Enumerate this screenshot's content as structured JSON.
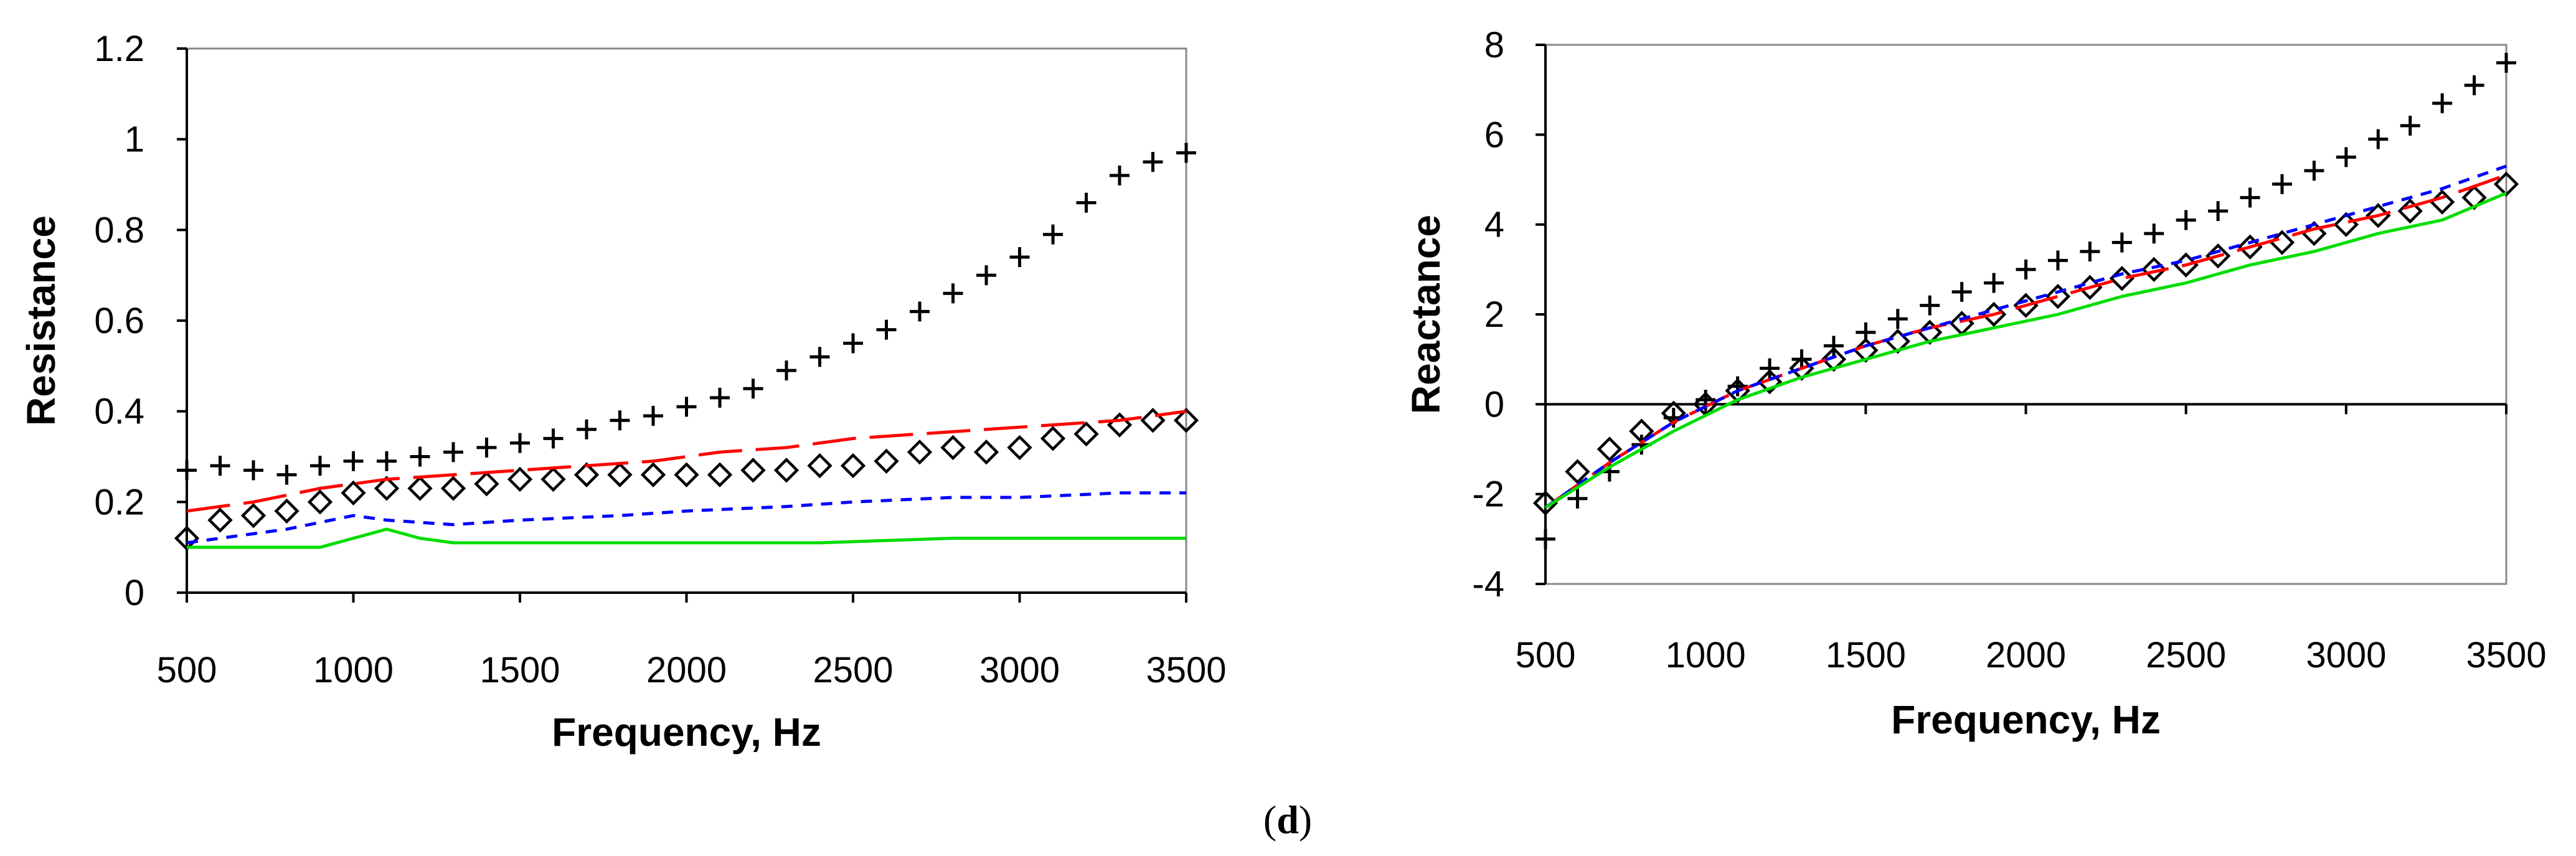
{
  "caption": {
    "open": "(",
    "letter": "d",
    "close": ")"
  },
  "chart_data": [
    {
      "type": "line",
      "xlabel": "Frequency, Hz",
      "ylabel": "Resistance",
      "xlim": [
        500,
        3500
      ],
      "ylim": [
        0,
        1.2
      ],
      "xticks": [
        500,
        1000,
        1500,
        2000,
        2500,
        3000,
        3500
      ],
      "yticks": [
        0,
        0.2,
        0.4,
        0.6,
        0.8,
        1,
        1.2
      ],
      "ytick_labels": [
        "0",
        "0.2",
        "0.4",
        "0.6",
        "0.8",
        "1",
        "1.2"
      ],
      "series": [
        {
          "name": "plus markers",
          "style": "plus",
          "color": "#000000",
          "x": [
            500,
            600,
            700,
            800,
            900,
            1000,
            1100,
            1200,
            1300,
            1400,
            1500,
            1600,
            1700,
            1800,
            1900,
            2000,
            2100,
            2200,
            2300,
            2400,
            2500,
            2600,
            2700,
            2800,
            2900,
            3000,
            3100,
            3200,
            3300,
            3400,
            3500
          ],
          "y": [
            0.27,
            0.28,
            0.27,
            0.26,
            0.28,
            0.29,
            0.29,
            0.3,
            0.31,
            0.32,
            0.33,
            0.34,
            0.36,
            0.38,
            0.39,
            0.41,
            0.43,
            0.45,
            0.49,
            0.52,
            0.55,
            0.58,
            0.62,
            0.66,
            0.7,
            0.74,
            0.79,
            0.86,
            0.92,
            0.95,
            0.97
          ]
        },
        {
          "name": "diamond markers",
          "style": "diamond",
          "color": "#000000",
          "x": [
            500,
            600,
            700,
            800,
            900,
            1000,
            1100,
            1200,
            1300,
            1400,
            1500,
            1600,
            1700,
            1800,
            1900,
            2000,
            2100,
            2200,
            2300,
            2400,
            2500,
            2600,
            2700,
            2800,
            2900,
            3000,
            3100,
            3200,
            3300,
            3400,
            3500
          ],
          "y": [
            0.12,
            0.16,
            0.17,
            0.18,
            0.2,
            0.22,
            0.23,
            0.23,
            0.23,
            0.24,
            0.25,
            0.25,
            0.26,
            0.26,
            0.26,
            0.26,
            0.26,
            0.27,
            0.27,
            0.28,
            0.28,
            0.29,
            0.31,
            0.32,
            0.31,
            0.32,
            0.34,
            0.35,
            0.37,
            0.38,
            0.38
          ]
        },
        {
          "name": "red long dash",
          "style": "longdash",
          "color": "#ff0000",
          "x": [
            500,
            700,
            900,
            1100,
            1300,
            1500,
            1700,
            1900,
            2100,
            2300,
            2500,
            2700,
            2900,
            3100,
            3300,
            3500
          ],
          "y": [
            0.18,
            0.2,
            0.23,
            0.25,
            0.26,
            0.27,
            0.28,
            0.29,
            0.31,
            0.32,
            0.34,
            0.35,
            0.36,
            0.37,
            0.38,
            0.4
          ]
        },
        {
          "name": "blue short dash",
          "style": "shortdash",
          "color": "#0000ff",
          "x": [
            500,
            800,
            1000,
            1100,
            1300,
            1500,
            1800,
            2000,
            2300,
            2500,
            2800,
            3000,
            3300,
            3500
          ],
          "y": [
            0.11,
            0.14,
            0.17,
            0.16,
            0.15,
            0.16,
            0.17,
            0.18,
            0.19,
            0.2,
            0.21,
            0.21,
            0.22,
            0.22
          ]
        },
        {
          "name": "green solid",
          "style": "solid",
          "color": "#00dd00",
          "x": [
            500,
            900,
            1000,
            1100,
            1200,
            1300,
            1600,
            2000,
            2400,
            2800,
            3200,
            3500
          ],
          "y": [
            0.1,
            0.1,
            0.12,
            0.14,
            0.12,
            0.11,
            0.11,
            0.11,
            0.11,
            0.12,
            0.12,
            0.12
          ]
        }
      ]
    },
    {
      "type": "line",
      "xlabel": "Frequency, Hz",
      "ylabel": "Reactance",
      "xlim": [
        500,
        3500
      ],
      "ylim": [
        -4,
        8
      ],
      "xticks": [
        500,
        1000,
        1500,
        2000,
        2500,
        3000,
        3500
      ],
      "yticks": [
        -4,
        -2,
        0,
        2,
        4,
        6,
        8
      ],
      "ytick_labels": [
        "-4",
        "-2",
        "0",
        "2",
        "4",
        "6",
        "8"
      ],
      "series": [
        {
          "name": "plus markers",
          "style": "plus",
          "color": "#000000",
          "x": [
            500,
            600,
            700,
            800,
            900,
            1000,
            1100,
            1200,
            1300,
            1400,
            1500,
            1600,
            1700,
            1800,
            1900,
            2000,
            2100,
            2200,
            2300,
            2400,
            2500,
            2600,
            2700,
            2800,
            2900,
            3000,
            3100,
            3200,
            3300,
            3400,
            3500
          ],
          "y": [
            -3.0,
            -2.1,
            -1.5,
            -0.9,
            -0.3,
            0.1,
            0.4,
            0.8,
            1.0,
            1.3,
            1.6,
            1.9,
            2.2,
            2.5,
            2.7,
            3.0,
            3.2,
            3.4,
            3.6,
            3.8,
            4.1,
            4.3,
            4.6,
            4.9,
            5.2,
            5.5,
            5.9,
            6.2,
            6.7,
            7.1,
            7.6
          ]
        },
        {
          "name": "diamond markers",
          "style": "diamond",
          "color": "#000000",
          "x": [
            500,
            600,
            700,
            800,
            900,
            1000,
            1100,
            1200,
            1300,
            1400,
            1500,
            1600,
            1700,
            1800,
            1900,
            2000,
            2100,
            2200,
            2300,
            2400,
            2500,
            2600,
            2700,
            2800,
            2900,
            3000,
            3100,
            3200,
            3300,
            3400,
            3500
          ],
          "y": [
            -2.2,
            -1.5,
            -1.0,
            -0.6,
            -0.2,
            0.0,
            0.3,
            0.5,
            0.8,
            1.0,
            1.2,
            1.4,
            1.6,
            1.8,
            2.0,
            2.2,
            2.4,
            2.6,
            2.8,
            3.0,
            3.1,
            3.3,
            3.5,
            3.6,
            3.8,
            4.0,
            4.2,
            4.3,
            4.5,
            4.6,
            4.9
          ]
        },
        {
          "name": "red long dash",
          "style": "longdash",
          "color": "#ff0000",
          "x": [
            500,
            700,
            900,
            1100,
            1300,
            1500,
            1700,
            1900,
            2100,
            2300,
            2500,
            2700,
            2900,
            3100,
            3300,
            3500
          ],
          "y": [
            -2.3,
            -1.3,
            -0.4,
            0.3,
            0.8,
            1.3,
            1.7,
            2.0,
            2.4,
            2.8,
            3.1,
            3.5,
            3.9,
            4.2,
            4.6,
            5.1
          ]
        },
        {
          "name": "blue short dash",
          "style": "shortdash",
          "color": "#0000ff",
          "x": [
            500,
            700,
            900,
            1100,
            1300,
            1500,
            1700,
            1900,
            2100,
            2300,
            2500,
            2700,
            2900,
            3100,
            3300,
            3500
          ],
          "y": [
            -2.3,
            -1.3,
            -0.4,
            0.3,
            0.8,
            1.3,
            1.7,
            2.1,
            2.5,
            2.9,
            3.2,
            3.6,
            4.0,
            4.4,
            4.8,
            5.3
          ]
        },
        {
          "name": "green solid",
          "style": "solid",
          "color": "#00dd00",
          "x": [
            500,
            700,
            900,
            1100,
            1300,
            1500,
            1700,
            1900,
            2100,
            2300,
            2500,
            2700,
            2900,
            3100,
            3300,
            3500
          ],
          "y": [
            -2.3,
            -1.4,
            -0.6,
            0.1,
            0.6,
            1.0,
            1.4,
            1.7,
            2.0,
            2.4,
            2.7,
            3.1,
            3.4,
            3.8,
            4.1,
            4.7
          ]
        }
      ]
    }
  ]
}
